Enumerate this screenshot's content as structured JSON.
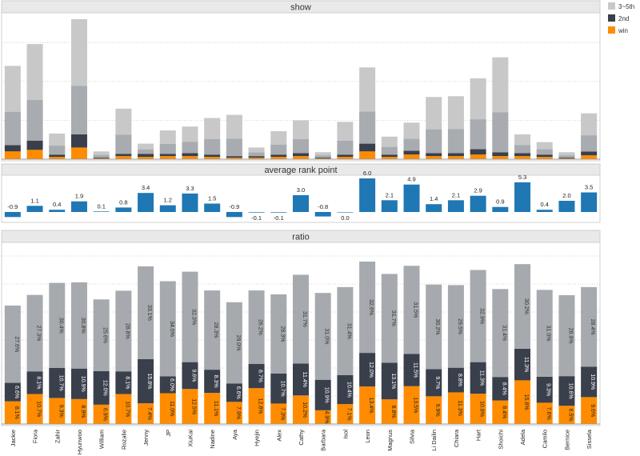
{
  "legend": {
    "items": [
      {
        "label": "3~5th",
        "color": "#c8c8c8"
      },
      {
        "label": "2nd",
        "color": "#3a3f4c"
      },
      {
        "label": "win",
        "color": "#ff8c00"
      }
    ]
  },
  "chart_data": [
    {
      "type": "bar",
      "stacked": true,
      "title": "show",
      "categories": [
        "Jackie",
        "Fiora",
        "Zahir",
        "Hyunwoo",
        "William",
        "Rozalie",
        "Jenny",
        "JP",
        "XiuKai",
        "Nadine",
        "Aya",
        "Hyejin",
        "Alex",
        "Cathy",
        "Barbara",
        "Isol",
        "Leon",
        "Magnus",
        "Silvia",
        "Li Dailin",
        "Chiara",
        "Hart",
        "Shoichi",
        "Adela",
        "Camilo",
        "Bernice",
        "Sissela"
      ],
      "series": [
        {
          "name": "win",
          "values": [
            10,
            12,
            3,
            15,
            1,
            4,
            3,
            4,
            4,
            3,
            2,
            2,
            3,
            4,
            1,
            3,
            10,
            3,
            6,
            4,
            4,
            6,
            4,
            4,
            3,
            1,
            5
          ]
        },
        {
          "name": "2nd",
          "values": [
            8,
            12,
            3,
            17,
            1,
            3,
            4,
            3,
            4,
            3,
            2,
            2,
            3,
            4,
            1,
            3,
            10,
            3,
            5,
            4,
            4,
            7,
            5,
            4,
            3,
            1,
            5
          ]
        },
        {
          "name": "3~5th",
          "values": [
            102,
            124,
            27,
            148,
            8,
            58,
            13,
            30,
            34,
            47,
            53,
            11,
            30,
            42,
            7,
            42,
            98,
            23,
            36,
            72,
            73,
            91,
            122,
            24,
            16,
            7,
            49
          ]
        }
      ],
      "grid": true
    },
    {
      "type": "bar",
      "title": "average rank point",
      "categories": [
        "Jackie",
        "Fiora",
        "Zahir",
        "Hyunwoo",
        "William",
        "Rozalie",
        "Jenny",
        "JP",
        "XiuKai",
        "Nadine",
        "Aya",
        "Hyejin",
        "Alex",
        "Cathy",
        "Barbara",
        "Isol",
        "Leon",
        "Magnus",
        "Silvia",
        "Li Dailin",
        "Chiara",
        "Hart",
        "Shoichi",
        "Adela",
        "Camilo",
        "Bernice",
        "Sissela"
      ],
      "values": [
        -0.9,
        1.1,
        0.4,
        1.9,
        0.1,
        0.8,
        3.4,
        1.2,
        3.3,
        1.5,
        -0.9,
        -0.1,
        -0.1,
        3.0,
        -0.8,
        0.0,
        6.0,
        2.1,
        4.9,
        1.4,
        2.1,
        2.9,
        0.9,
        5.3,
        0.4,
        2.0,
        3.5
      ],
      "data_labels": [
        "-0.9",
        "1.1",
        "0.4",
        "1.9",
        "0.1",
        "0.8",
        "3.4",
        "1.2",
        "3.3",
        "1.5",
        "-0.9",
        "-0.1",
        "-0.1",
        "3.0",
        "-0.8",
        "0.0",
        "6.0",
        "2.1",
        "4.9",
        "1.4",
        "2.1",
        "2.9",
        "0.9",
        "5.3",
        "0.4",
        "2.0",
        "3.5"
      ],
      "color": "#1f77b4"
    },
    {
      "type": "bar",
      "stacked": true,
      "title": "ratio",
      "categories": [
        "Jackie",
        "Fiora",
        "Zahir",
        "Hyunwoo",
        "William",
        "Rozalie",
        "Jenny",
        "JP",
        "XiuKai",
        "Nadine",
        "Aya",
        "Hyejin",
        "Alex",
        "Cathy",
        "Barbara",
        "Isol",
        "Leon",
        "Magnus",
        "Silvia",
        "Li Dailin",
        "Chiara",
        "Hart",
        "Shoichi",
        "Adela",
        "Camilo",
        "Bernice",
        "Sissela"
      ],
      "series": [
        {
          "name": "win",
          "values": [
            8.1,
            10.7,
            9.3,
            8.9,
            6.9,
            10.7,
            7.4,
            11.0,
            12.5,
            11.1,
            7.9,
            12.8,
            7.3,
            10.2,
            4.9,
            7.1,
            13.4,
            8.8,
            13.5,
            9.9,
            11.3,
            10.8,
            8.4,
            15.6,
            7.6,
            6.5,
            9.6
          ],
          "labels": [
            "8.1%",
            "10.7%",
            "9.3%",
            "8.9%",
            "6.9%",
            "10.7%",
            "7.4%",
            "11.0%",
            "12.5%",
            "11.1%",
            "7.9%",
            "12.8%",
            "7.3%",
            "10.2%",
            "4.9%",
            "7.1%",
            "13.4%",
            "8.8%",
            "13.5%",
            "9.9%",
            "11.3%",
            "10.8%",
            "8.4%",
            "15.6%",
            "7.6%",
            "6.5%",
            "9.6%"
          ]
        },
        {
          "name": "2nd",
          "values": [
            6.6,
            8.1,
            10.7,
            10.9,
            12.0,
            8.1,
            15.8,
            6.0,
            9.6,
            8.3,
            6.6,
            8.7,
            10.7,
            11.4,
            10.9,
            10.4,
            12.0,
            13.1,
            11.5,
            9.7,
            8.8,
            11.3,
            8.4,
            11.3,
            9.3,
            10.6,
            10.9
          ],
          "labels": [
            "6.6%",
            "8.1%",
            "10.7%",
            "10.9%",
            "12.0%",
            "8.1%",
            "15.8%",
            "6.0%",
            "9.6%",
            "8.3%",
            "6.6%",
            "8.7%",
            "10.7%",
            "11.4%",
            "10.9%",
            "10.4%",
            "12.0%",
            "13.1%",
            "11.5%",
            "9.7%",
            "8.8%",
            "11.3%",
            "8.4%",
            "11.3%",
            "9.3%",
            "10.6%",
            "10.9%"
          ]
        },
        {
          "name": "3~5th",
          "values": [
            27.6,
            27.3,
            30.4,
            30.8,
            25.6,
            28.8,
            33.1,
            34.0,
            32.3,
            28.3,
            29.0,
            26.2,
            28.3,
            31.7,
            31.0,
            31.4,
            32.6,
            31.7,
            31.5,
            30.2,
            29.5,
            32.9,
            31.4,
            30.2,
            31.0,
            28.9,
            28.4
          ],
          "labels": [
            "27.6%",
            "27.3%",
            "30.4%",
            "30.8%",
            "25.6%",
            "28.8%",
            "33.1%",
            "34.0%",
            "32.3%",
            "28.3%",
            "29.0%",
            "26.2%",
            "28.3%",
            "31.7%",
            "31.0%",
            "31.4%",
            "32.6%",
            "31.7%",
            "31.5%",
            "30.2%",
            "29.5%",
            "32.9%",
            "31.4%",
            "30.2%",
            "31.0%",
            "28.9%",
            "28.4%"
          ]
        }
      ],
      "grid": true
    }
  ]
}
